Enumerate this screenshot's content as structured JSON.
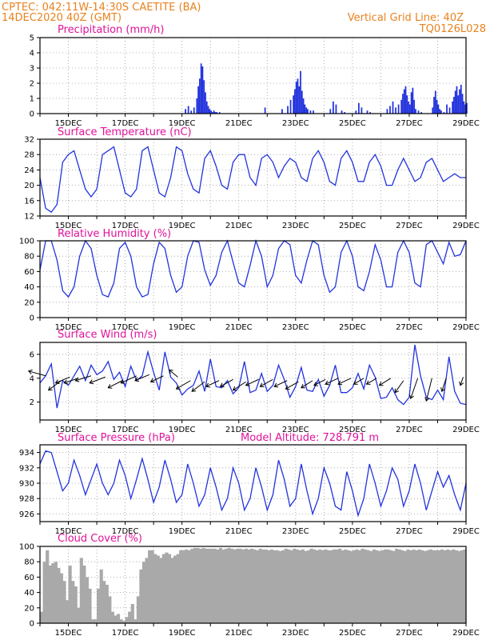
{
  "header": {
    "line1": "CPTEC:   042:11W-14:30S   CAETITE (BA)",
    "line2": "14DEC2020 40Z (GMT)",
    "grid_note": "Vertical Grid Line: 40Z",
    "code": "TQ0126L028"
  },
  "x_tick_labels": [
    "15DEC",
    "17DEC",
    "19DEC",
    "21DEC",
    "23DEC",
    "25DEC",
    "27DEC",
    "29DEC"
  ],
  "colors": {
    "header": "#e8821e",
    "title": "#e0129a",
    "line": "#2233dd",
    "cloud": "#a9a9a9"
  },
  "panels": {
    "precip": {
      "title": "Precipitation (mm/h)"
    },
    "temp": {
      "title": "Surface Temperature (nC)"
    },
    "rh": {
      "title": "Relative Humidity (%)"
    },
    "wind": {
      "title": "Surface Wind (m/s)"
    },
    "press": {
      "title": "Surface Pressure (hPa)",
      "extra": "Model Altitude: 728.791 m"
    },
    "cloud": {
      "title": "Cloud Cover (%)"
    }
  },
  "chart_data": [
    {
      "type": "bar",
      "panel": "precip",
      "title": "Precipitation (mm/h)",
      "xrange": [
        14.0,
        29.0
      ],
      "ylim": [
        0,
        5
      ],
      "yticks": [
        0,
        1,
        2,
        3,
        4,
        5
      ],
      "grid": true,
      "bar_width": 0.05,
      "x": [
        19.1,
        19.2,
        19.3,
        19.4,
        19.5,
        19.55,
        19.6,
        19.65,
        19.7,
        19.75,
        19.8,
        19.85,
        19.9,
        19.95,
        20.0,
        20.05,
        20.1,
        20.15,
        20.2,
        20.3,
        21.9,
        22.5,
        22.7,
        22.8,
        22.9,
        22.95,
        23.0,
        23.05,
        23.1,
        23.15,
        23.2,
        23.25,
        23.3,
        23.35,
        23.4,
        23.5,
        23.6,
        24.2,
        24.3,
        24.4,
        24.6,
        24.7,
        25.1,
        25.2,
        25.3,
        25.5,
        25.6,
        26.2,
        26.3,
        26.4,
        26.5,
        26.6,
        26.7,
        26.75,
        26.8,
        26.85,
        26.9,
        26.95,
        27.0,
        27.05,
        27.1,
        27.15,
        27.2,
        27.3,
        27.4,
        27.8,
        27.85,
        27.9,
        27.95,
        28.0,
        28.05,
        28.1,
        28.2,
        28.3,
        28.4,
        28.5,
        28.55,
        28.6,
        28.65,
        28.7,
        28.75,
        28.8,
        28.85,
        28.9,
        28.95,
        29.0
      ],
      "values": [
        0.3,
        0.5,
        0.2,
        0.4,
        1.0,
        1.8,
        2.3,
        3.3,
        3.1,
        2.2,
        1.4,
        0.8,
        0.5,
        0.3,
        0.2,
        0.1,
        0.2,
        0.1,
        0.1,
        0.1,
        0.4,
        0.3,
        0.5,
        0.9,
        1.2,
        1.6,
        2.1,
        2.3,
        1.8,
        2.8,
        1.5,
        1.0,
        0.6,
        0.4,
        0.3,
        0.2,
        0.2,
        0.3,
        0.8,
        0.6,
        0.2,
        0.1,
        0.2,
        0.7,
        0.4,
        0.2,
        0.1,
        0.3,
        0.5,
        0.8,
        0.4,
        0.6,
        0.9,
        1.3,
        1.6,
        1.8,
        1.2,
        0.8,
        0.6,
        1.4,
        1.7,
        0.9,
        0.3,
        0.2,
        0.1,
        0.4,
        1.1,
        1.5,
        0.9,
        0.6,
        0.3,
        0.2,
        0.1,
        0.6,
        0.4,
        0.8,
        1.1,
        1.5,
        1.8,
        1.2,
        1.6,
        1.9,
        1.3,
        0.8,
        0.6,
        0.7
      ]
    },
    {
      "type": "line",
      "panel": "temp",
      "title": "Surface Temperature (nC)",
      "xrange": [
        14.0,
        29.0
      ],
      "ylim": [
        12,
        32
      ],
      "yticks": [
        12,
        16,
        20,
        24,
        28,
        32
      ],
      "grid": true,
      "x": [
        14.0,
        14.2,
        14.4,
        14.6,
        14.8,
        15.0,
        15.2,
        15.4,
        15.6,
        15.8,
        16.0,
        16.2,
        16.4,
        16.6,
        16.8,
        17.0,
        17.2,
        17.4,
        17.6,
        17.8,
        18.0,
        18.2,
        18.4,
        18.6,
        18.8,
        19.0,
        19.2,
        19.4,
        19.6,
        19.8,
        20.0,
        20.2,
        20.4,
        20.6,
        20.8,
        21.0,
        21.2,
        21.4,
        21.6,
        21.8,
        22.0,
        22.2,
        22.4,
        22.6,
        22.8,
        23.0,
        23.2,
        23.4,
        23.6,
        23.8,
        24.0,
        24.2,
        24.4,
        24.6,
        24.8,
        25.0,
        25.2,
        25.4,
        25.6,
        25.8,
        26.0,
        26.2,
        26.4,
        26.6,
        26.8,
        27.0,
        27.2,
        27.4,
        27.6,
        27.8,
        28.0,
        28.2,
        28.4,
        28.6,
        28.8,
        29.0
      ],
      "values": [
        22,
        14,
        13,
        15,
        26,
        28,
        29,
        24,
        19,
        17,
        19,
        28,
        29,
        30,
        24,
        18,
        17,
        19,
        29,
        30,
        24,
        18,
        17,
        22,
        30,
        29,
        23,
        19,
        18,
        27,
        29,
        25,
        20,
        19,
        26,
        28,
        28,
        22,
        20,
        27,
        28,
        26,
        22,
        25,
        27,
        26,
        22,
        21,
        27,
        29,
        26,
        21,
        20,
        27,
        29,
        26,
        21,
        21,
        26,
        28,
        25,
        20,
        20,
        24,
        27,
        24,
        21,
        22,
        26,
        27,
        24,
        21,
        22,
        23,
        22,
        22
      ]
    },
    {
      "type": "line",
      "panel": "rh",
      "title": "Relative Humidity (%)",
      "xrange": [
        14.0,
        29.0
      ],
      "ylim": [
        0,
        100
      ],
      "yticks": [
        0,
        20,
        40,
        60,
        80,
        100
      ],
      "grid": true,
      "x": [
        14.0,
        14.2,
        14.4,
        14.6,
        14.8,
        15.0,
        15.2,
        15.4,
        15.6,
        15.8,
        16.0,
        16.2,
        16.4,
        16.6,
        16.8,
        17.0,
        17.2,
        17.4,
        17.6,
        17.8,
        18.0,
        18.2,
        18.4,
        18.6,
        18.8,
        19.0,
        19.2,
        19.4,
        19.6,
        19.8,
        20.0,
        20.2,
        20.4,
        20.6,
        20.8,
        21.0,
        21.2,
        21.4,
        21.6,
        21.8,
        22.0,
        22.2,
        22.4,
        22.6,
        22.8,
        23.0,
        23.2,
        23.4,
        23.6,
        23.8,
        24.0,
        24.2,
        24.4,
        24.6,
        24.8,
        25.0,
        25.2,
        25.4,
        25.6,
        25.8,
        26.0,
        26.2,
        26.4,
        26.6,
        26.8,
        27.0,
        27.2,
        27.4,
        27.6,
        27.8,
        28.0,
        28.2,
        28.4,
        28.6,
        28.8,
        29.0
      ],
      "values": [
        62,
        100,
        100,
        75,
        35,
        27,
        40,
        80,
        100,
        90,
        55,
        30,
        27,
        45,
        90,
        98,
        80,
        40,
        27,
        30,
        70,
        98,
        90,
        55,
        33,
        40,
        80,
        100,
        98,
        62,
        42,
        55,
        85,
        100,
        72,
        45,
        40,
        68,
        100,
        80,
        40,
        55,
        90,
        100,
        95,
        55,
        45,
        75,
        100,
        95,
        55,
        33,
        40,
        85,
        100,
        80,
        40,
        35,
        60,
        95,
        75,
        40,
        40,
        85,
        100,
        85,
        45,
        40,
        95,
        100,
        85,
        70,
        98,
        80,
        82,
        100
      ]
    },
    {
      "type": "line",
      "panel": "wind",
      "title": "Surface Wind (m/s)",
      "xrange": [
        14.0,
        29.0
      ],
      "ylim": [
        0.5,
        7
      ],
      "yticks": [
        2,
        4,
        6
      ],
      "grid": true,
      "x": [
        14.0,
        14.2,
        14.4,
        14.6,
        14.8,
        15.0,
        15.2,
        15.4,
        15.6,
        15.8,
        16.0,
        16.2,
        16.4,
        16.6,
        16.8,
        17.0,
        17.2,
        17.4,
        17.6,
        17.8,
        18.0,
        18.2,
        18.4,
        18.6,
        18.8,
        19.0,
        19.2,
        19.4,
        19.6,
        19.8,
        20.0,
        20.2,
        20.4,
        20.6,
        20.8,
        21.0,
        21.2,
        21.4,
        21.6,
        21.8,
        22.0,
        22.2,
        22.4,
        22.6,
        22.8,
        23.0,
        23.2,
        23.4,
        23.6,
        23.8,
        24.0,
        24.2,
        24.4,
        24.6,
        24.8,
        25.0,
        25.2,
        25.4,
        25.6,
        25.8,
        26.0,
        26.2,
        26.4,
        26.6,
        26.8,
        27.0,
        27.2,
        27.4,
        27.6,
        27.8,
        28.0,
        28.2,
        28.4,
        28.6,
        28.8,
        29.0
      ],
      "values": [
        3.6,
        4.2,
        5.2,
        1.5,
        3.8,
        3.4,
        4.2,
        5.0,
        3.8,
        5.1,
        4.3,
        4.6,
        5.4,
        3.9,
        4.5,
        3.3,
        5.0,
        3.8,
        4.2,
        6.2,
        4.5,
        3.0,
        6.2,
        4.1,
        3.6,
        2.6,
        3.1,
        3.4,
        4.6,
        2.9,
        5.6,
        3.3,
        3.2,
        3.8,
        2.7,
        3.2,
        5.4,
        2.8,
        3.0,
        4.4,
        2.9,
        3.4,
        5.1,
        3.9,
        2.4,
        3.3,
        4.9,
        3.0,
        2.9,
        3.9,
        2.5,
        3.4,
        5.1,
        2.8,
        2.8,
        3.2,
        4.4,
        3.1,
        5.1,
        4.1,
        2.3,
        2.4,
        3.2,
        2.2,
        1.8,
        2.4,
        6.8,
        4.2,
        2.4,
        2.2,
        3.0,
        2.2,
        5.8,
        2.9,
        1.9,
        1.8
      ],
      "vectors": {
        "x": [
          14.2,
          14.75,
          15.05,
          15.35,
          15.8,
          16.3,
          16.9,
          17.4,
          17.85,
          18.35,
          18.85,
          19.3,
          19.8,
          20.3,
          20.8,
          21.25,
          21.7,
          22.2,
          22.7,
          23.1,
          23.6,
          24.05,
          24.5,
          24.95,
          25.4,
          25.85,
          26.35,
          26.8,
          27.3,
          27.8,
          28.3,
          28.9
        ],
        "y": [
          4.2,
          3.8,
          4.1,
          4.0,
          4.2,
          4.1,
          3.8,
          4.2,
          4.3,
          4.2,
          4.1,
          3.8,
          3.7,
          3.8,
          3.9,
          3.7,
          3.9,
          3.9,
          3.8,
          3.7,
          3.8,
          3.9,
          4.0,
          4.0,
          4.0,
          4.0,
          4.0,
          3.8,
          4.0,
          4.0,
          4.0,
          4.1
        ],
        "dx": [
          -0.6,
          -0.45,
          -0.5,
          -0.5,
          -0.55,
          -0.55,
          -0.5,
          -0.55,
          -0.5,
          -0.45,
          -0.3,
          -0.5,
          -0.45,
          -0.45,
          -0.45,
          -0.45,
          -0.45,
          -0.45,
          -0.45,
          -0.45,
          -0.4,
          -0.4,
          -0.45,
          -0.45,
          -0.35,
          -0.35,
          -0.4,
          -0.3,
          -0.25,
          -0.2,
          -0.15,
          -0.1
        ],
        "dy": [
          0.4,
          -0.8,
          -0.5,
          -0.4,
          -0.4,
          -0.5,
          -0.6,
          -0.6,
          -0.5,
          -0.5,
          0.6,
          -0.7,
          -0.8,
          -0.5,
          -0.6,
          -0.7,
          -0.5,
          -0.6,
          -0.5,
          -0.6,
          -0.6,
          -0.5,
          -0.5,
          -0.5,
          -0.5,
          -0.5,
          -0.6,
          -1.0,
          -1.7,
          -1.9,
          -1.1,
          -0.7
        ]
      }
    },
    {
      "type": "line",
      "panel": "press",
      "title": "Surface Pressure (hPa)",
      "xrange": [
        14.0,
        29.0
      ],
      "ylim": [
        925,
        935
      ],
      "yticks": [
        926,
        928,
        930,
        932,
        934
      ],
      "grid": true,
      "x": [
        14.0,
        14.2,
        14.4,
        14.6,
        14.8,
        15.0,
        15.2,
        15.4,
        15.6,
        15.8,
        16.0,
        16.2,
        16.4,
        16.6,
        16.8,
        17.0,
        17.2,
        17.4,
        17.6,
        17.8,
        18.0,
        18.2,
        18.4,
        18.6,
        18.8,
        19.0,
        19.2,
        19.4,
        19.6,
        19.8,
        20.0,
        20.2,
        20.4,
        20.6,
        20.8,
        21.0,
        21.2,
        21.4,
        21.6,
        21.8,
        22.0,
        22.2,
        22.4,
        22.6,
        22.8,
        23.0,
        23.2,
        23.4,
        23.6,
        23.8,
        24.0,
        24.2,
        24.4,
        24.6,
        24.8,
        25.0,
        25.2,
        25.4,
        25.6,
        25.8,
        26.0,
        26.2,
        26.4,
        26.6,
        26.8,
        27.0,
        27.2,
        27.4,
        27.6,
        27.8,
        28.0,
        28.2,
        28.4,
        28.6,
        28.8,
        29.0
      ],
      "values": [
        932.5,
        934.2,
        934.0,
        931.5,
        929.0,
        930.0,
        933.0,
        931.0,
        928.5,
        930.5,
        932.5,
        930.0,
        928.5,
        930.0,
        933.0,
        931.0,
        928.0,
        930.5,
        933.2,
        930.5,
        927.5,
        929.5,
        933.0,
        930.5,
        927.5,
        928.5,
        932.5,
        930.0,
        927.0,
        928.5,
        932.0,
        929.5,
        926.5,
        928.0,
        932.0,
        930.0,
        926.5,
        928.0,
        932.0,
        929.5,
        926.5,
        928.5,
        933.0,
        930.5,
        927.0,
        928.0,
        932.5,
        929.0,
        926.0,
        928.0,
        932.0,
        930.0,
        927.0,
        926.5,
        931.5,
        929.0,
        925.8,
        928.0,
        932.5,
        930.0,
        927.0,
        929.0,
        932.0,
        930.5,
        927.0,
        929.0,
        932.5,
        930.0,
        926.5,
        929.0,
        931.5,
        929.5,
        931.0,
        928.5,
        926.5,
        930.0
      ]
    },
    {
      "type": "bar",
      "panel": "cloud",
      "title": "Cloud Cover (%)",
      "xrange": [
        14.0,
        29.0
      ],
      "ylim": [
        0,
        100
      ],
      "yticks": [
        0,
        20,
        40,
        60,
        80,
        100
      ],
      "grid": true,
      "x": [
        14.0,
        14.1,
        14.2,
        14.3,
        14.4,
        14.5,
        14.6,
        14.7,
        14.8,
        14.9,
        15.0,
        15.1,
        15.2,
        15.3,
        15.4,
        15.5,
        15.6,
        15.7,
        15.8,
        15.9,
        16.0,
        16.1,
        16.2,
        16.3,
        16.4,
        16.5,
        16.6,
        16.7,
        16.8,
        16.9,
        17.0,
        17.1,
        17.2,
        17.3,
        17.4,
        17.5,
        17.6,
        17.7,
        17.8,
        17.9,
        18.0,
        18.1,
        18.2,
        18.3,
        18.4,
        18.5,
        18.6,
        18.7,
        18.8,
        18.9,
        19.0,
        19.1,
        19.2,
        19.3,
        19.4,
        19.5,
        19.6,
        19.7,
        19.8,
        19.9,
        20.0,
        20.1,
        20.2,
        20.3,
        20.4,
        20.5,
        20.6,
        20.7,
        20.8,
        20.9,
        21.0,
        21.1,
        21.2,
        21.3,
        21.4,
        21.5,
        21.6,
        21.7,
        21.8,
        21.9,
        22.0,
        22.1,
        22.2,
        22.3,
        22.4,
        22.5,
        22.6,
        22.7,
        22.8,
        22.9,
        23.0,
        23.1,
        23.2,
        23.3,
        23.4,
        23.5,
        23.6,
        23.7,
        23.8,
        23.9,
        24.0,
        24.1,
        24.2,
        24.3,
        24.4,
        24.5,
        24.6,
        24.7,
        24.8,
        24.9,
        25.0,
        25.1,
        25.2,
        25.3,
        25.4,
        25.5,
        25.6,
        25.7,
        25.8,
        25.9,
        26.0,
        26.1,
        26.2,
        26.3,
        26.4,
        26.5,
        26.6,
        26.7,
        26.8,
        26.9,
        27.0,
        27.1,
        27.2,
        27.3,
        27.4,
        27.5,
        27.6,
        27.7,
        27.8,
        27.9,
        28.0,
        28.1,
        28.2,
        28.3,
        28.4,
        28.5,
        28.6,
        28.7,
        28.8,
        28.9
      ],
      "values": [
        15,
        80,
        95,
        75,
        78,
        80,
        72,
        65,
        55,
        30,
        75,
        55,
        48,
        20,
        85,
        75,
        60,
        45,
        5,
        5,
        45,
        70,
        55,
        50,
        35,
        15,
        10,
        12,
        5,
        3,
        8,
        15,
        25,
        5,
        35,
        70,
        80,
        85,
        95,
        95,
        90,
        88,
        85,
        90,
        92,
        90,
        85,
        88,
        90,
        95,
        95,
        96,
        95,
        97,
        98,
        98,
        97,
        98,
        97,
        97,
        97,
        97,
        96,
        98,
        96,
        97,
        98,
        97,
        96,
        97,
        97,
        96,
        97,
        96,
        97,
        96,
        95,
        97,
        96,
        96,
        95,
        96,
        95,
        95,
        94,
        95,
        97,
        96,
        95,
        97,
        96,
        95,
        96,
        94,
        95,
        97,
        96,
        95,
        96,
        95,
        96,
        95,
        95,
        96,
        96,
        97,
        95,
        96,
        95,
        94,
        95,
        96,
        95,
        97,
        96,
        95,
        94,
        96,
        95,
        94,
        95,
        96,
        96,
        95,
        94,
        97,
        96,
        95,
        94,
        96,
        95,
        96,
        95,
        96,
        95,
        94,
        95,
        96,
        95,
        95,
        95,
        96,
        95,
        96,
        95,
        96,
        95,
        94,
        95,
        96
      ]
    }
  ]
}
